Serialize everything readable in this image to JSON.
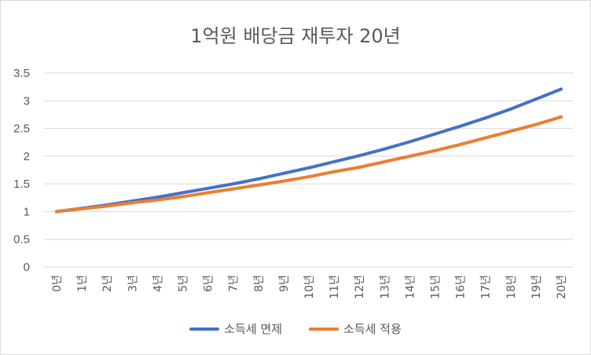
{
  "chart_data": {
    "type": "line",
    "title": "1억원 배당금 재투자 20년",
    "xlabel": "",
    "ylabel": "",
    "categories": [
      "0년",
      "1년",
      "2년",
      "3년",
      "4년",
      "5년",
      "6년",
      "7년",
      "8년",
      "9년",
      "10년",
      "11년",
      "12년",
      "13년",
      "14년",
      "15년",
      "16년",
      "17년",
      "18년",
      "19년",
      "20년"
    ],
    "ylim": [
      0,
      3.5
    ],
    "yticks": [
      "0",
      "0.5",
      "1",
      "1.5",
      "2",
      "2.5",
      "3",
      "3.5"
    ],
    "grid": true,
    "legend_position": "bottom",
    "series": [
      {
        "name": "소득세 면제",
        "color": "#4472c4",
        "values": [
          1.0,
          1.06,
          1.12,
          1.19,
          1.26,
          1.34,
          1.42,
          1.5,
          1.59,
          1.69,
          1.79,
          1.9,
          2.01,
          2.13,
          2.26,
          2.4,
          2.54,
          2.69,
          2.85,
          3.03,
          3.21
        ]
      },
      {
        "name": "소득세 적용",
        "color": "#ed7d31",
        "values": [
          1.0,
          1.05,
          1.1,
          1.16,
          1.21,
          1.27,
          1.34,
          1.41,
          1.48,
          1.55,
          1.63,
          1.72,
          1.8,
          1.9,
          2.0,
          2.1,
          2.21,
          2.33,
          2.45,
          2.57,
          2.71
        ]
      }
    ]
  }
}
